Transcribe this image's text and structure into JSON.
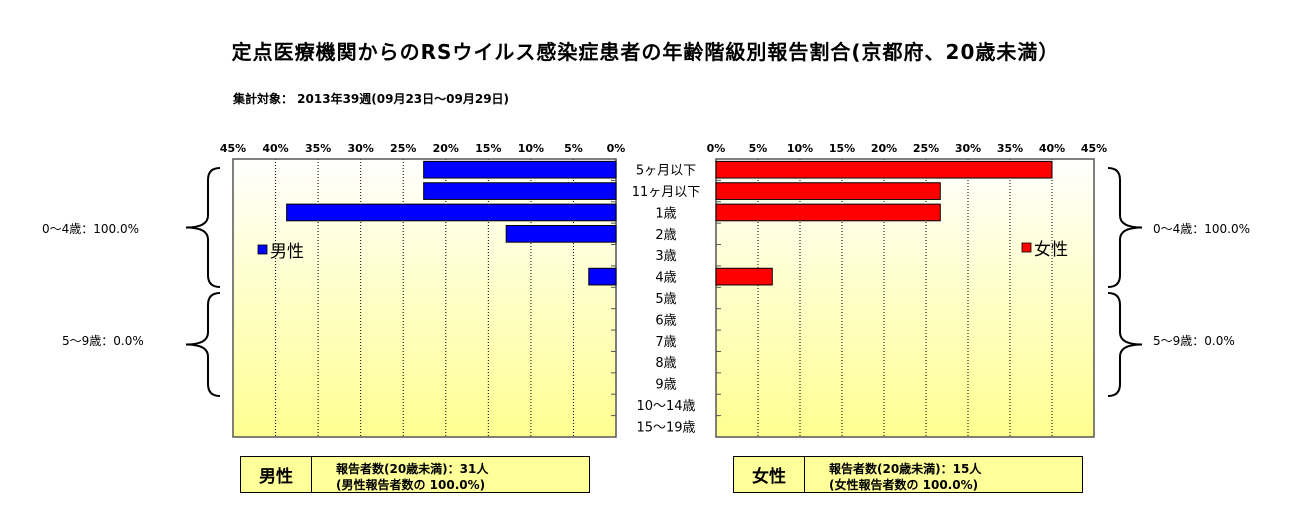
{
  "title": "定点医療機関からのRSウイルス感染症患者の年齢階級別報告割合(京都府、20歳未満）",
  "subtitle": "集計対象： 2013年39週(09月23日～09月29日)",
  "chart_data": {
    "type": "bar",
    "orientation": "horizontal-butterfly",
    "categories": [
      "5ヶ月以下",
      "11ヶ月以下",
      "1歳",
      "2歳",
      "3歳",
      "4歳",
      "5歳",
      "6歳",
      "7歳",
      "8歳",
      "9歳",
      "10～14歳",
      "15～19歳"
    ],
    "xlim": [
      0,
      45
    ],
    "x_ticks": [
      "0%",
      "5%",
      "10%",
      "15%",
      "20%",
      "25%",
      "30%",
      "35%",
      "40%",
      "45%"
    ],
    "grid": true,
    "series": [
      {
        "name": "男性",
        "color": "#0000ff",
        "side": "left",
        "values": [
          22.6,
          22.6,
          38.7,
          12.9,
          0,
          3.2,
          0,
          0,
          0,
          0,
          0,
          0,
          0
        ]
      },
      {
        "name": "女性",
        "color": "#ff0000",
        "side": "right",
        "values": [
          40.0,
          26.7,
          26.7,
          0,
          0,
          6.7,
          0,
          0,
          0,
          0,
          0,
          0,
          0
        ]
      }
    ],
    "group_labels": {
      "left": [
        "0～4歳：100.0%",
        "5～9歳：0.0%"
      ],
      "right": [
        "0～4歳：100.0%",
        "5～9歳：0.0%"
      ]
    }
  },
  "male_box": {
    "label": "男性",
    "line1": "報告者数(20歳未満)：31人",
    "line2": "(男性報告者数の 100.0%)"
  },
  "female_box": {
    "label": "女性",
    "line1": "報告者数(20歳未満)：15人",
    "line2": "(女性報告者数の 100.0%)"
  }
}
